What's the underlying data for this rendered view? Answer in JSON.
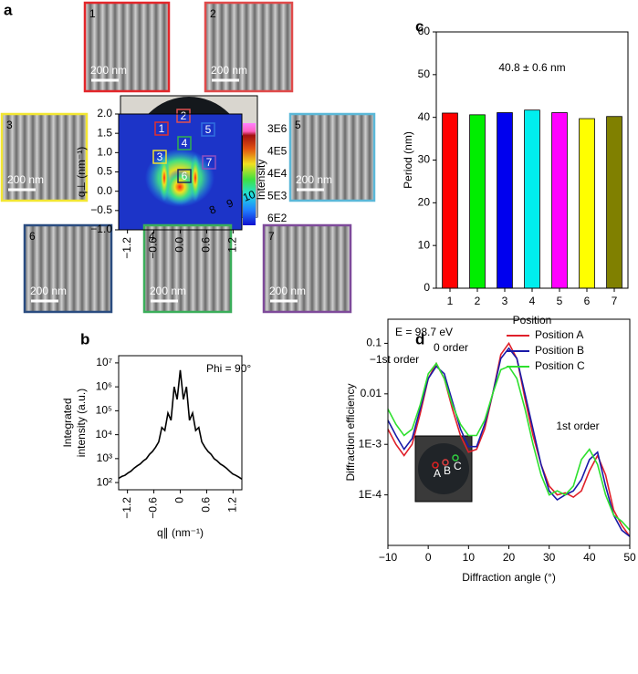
{
  "panel_labels": [
    "a",
    "b",
    "c",
    "d"
  ],
  "sem_images": [
    {
      "label": "1",
      "scale_bar": "200 nm",
      "color": "#e3262a"
    },
    {
      "label": "2",
      "scale_bar": "200 nm",
      "color": "#e04a4a"
    },
    {
      "label": "3",
      "scale_bar": "200 nm",
      "color": "#f2e632"
    },
    {
      "label": "5",
      "scale_bar": "200 nm",
      "color": "#5bb8d8"
    },
    {
      "label": "6",
      "scale_bar": "200 nm",
      "color": "#2a4c80"
    },
    {
      "label": "4",
      "scale_bar": "200 nm",
      "color": "#3aae5a"
    },
    {
      "label": "7",
      "scale_bar": "200 nm",
      "color": "#7e4a9a"
    }
  ],
  "wafer": {
    "markers": [
      {
        "label": "1",
        "color": "#e03030"
      },
      {
        "label": "2",
        "color": "#e05050"
      },
      {
        "label": "3",
        "color": "#f0e030"
      },
      {
        "label": "4",
        "color": "#30b050"
      },
      {
        "label": "5",
        "color": "#3070e0"
      },
      {
        "label": "6",
        "color": "#1a2a5a"
      },
      {
        "label": "7",
        "color": "#9050c0"
      }
    ],
    "ruler": [
      "8",
      "9",
      "10"
    ]
  },
  "chart_data": [
    {
      "type": "bar",
      "categories": [
        "1",
        "2",
        "3",
        "4",
        "5",
        "6",
        "7"
      ],
      "values": [
        41.0,
        40.6,
        41.1,
        41.7,
        41.1,
        39.7,
        40.2
      ],
      "colors": [
        "#ff0000",
        "#00ee00",
        "#0000ee",
        "#00eeee",
        "#ff00ff",
        "#ffff00",
        "#808000"
      ],
      "ylim": [
        0,
        60
      ],
      "yticks": [
        0,
        10,
        20,
        30,
        40,
        50,
        60
      ],
      "xlabel": "Position",
      "ylabel": "Period (nm)",
      "annotation": "40.8 ± 0.6 nm"
    },
    {
      "type": "heatmap",
      "xlim": [
        -1.4,
        1.4
      ],
      "ylim": [
        -1.0,
        2.0
      ],
      "xticks": [
        {
          "value": -1.2,
          "label": "−1.2"
        },
        {
          "value": -0.6,
          "label": "−0.6"
        },
        {
          "value": 0,
          "label": "0.0"
        },
        0.6,
        1.2
      ],
      "yticks": [
        {
          "value": -1,
          "label": "−1.0"
        },
        {
          "value": -0.5,
          "label": "−0.5"
        },
        {
          "value": 0,
          "label": "0.0"
        },
        0.5,
        {
          "value": 1,
          "label": "1.0"
        },
        1.5,
        {
          "value": 2,
          "label": "2.0"
        }
      ],
      "ylabel": "q⊥ (nm⁻¹)",
      "colorbar_label": "Intensity",
      "colorbar_labels": [
        "3E6",
        "4E5",
        "4E4",
        "5E3",
        "6E2"
      ]
    },
    {
      "type": "line",
      "log_y": true,
      "color": "#000000",
      "x": [
        -1.4,
        -1.33,
        -1.26,
        -1.19,
        -1.12,
        -1.05,
        -0.98,
        -0.91,
        -0.84,
        -0.77,
        -0.7,
        -0.63,
        -0.56,
        -0.49,
        -0.42,
        -0.35,
        -0.28,
        -0.21,
        -0.14,
        -0.07,
        0,
        0.07,
        0.14,
        0.21,
        0.28,
        0.35,
        0.42,
        0.49,
        0.56,
        0.63,
        0.7,
        0.77,
        0.84,
        0.91,
        0.98,
        1.05,
        1.12,
        1.19,
        1.26,
        1.33,
        1.4
      ],
      "values": [
        150,
        180,
        200,
        250,
        300,
        400,
        500,
        600,
        800,
        1000,
        1500,
        2000,
        3000,
        5000,
        20000,
        15000,
        80000,
        40000,
        1000000,
        300000,
        5000000,
        300000,
        1000000,
        40000,
        80000,
        15000,
        20000,
        5000,
        3000,
        2000,
        1500,
        1000,
        800,
        600,
        500,
        400,
        300,
        230,
        200,
        170,
        140
      ],
      "xlim": [
        -1.4,
        1.4
      ],
      "ylim": [
        50,
        20000000
      ],
      "xticks": [
        {
          "value": -1.2,
          "label": "−1.2"
        },
        {
          "value": -0.6,
          "label": "−0.6"
        },
        0,
        0.6,
        1.2
      ],
      "yticks": [
        {
          "value": 100,
          "label": "10²"
        },
        {
          "value": 1000,
          "label": "10³"
        },
        {
          "value": 10000,
          "label": "10⁴"
        },
        {
          "value": 100000,
          "label": "10⁵"
        },
        {
          "value": 1000000,
          "label": "10⁶"
        },
        {
          "value": 10000000,
          "label": "10⁷"
        }
      ],
      "xlabel": "q∥ (nm⁻¹)",
      "ylabel_lines": [
        "Integrated",
        "intensity (a.u.)"
      ],
      "annotations": [
        "Phi = 90°"
      ]
    },
    {
      "type": "line",
      "log_y": true,
      "x": [
        -10,
        -8,
        -6,
        -4,
        -2,
        0,
        2,
        4,
        6,
        8,
        10,
        12,
        14,
        16,
        18,
        20,
        22,
        24,
        26,
        28,
        30,
        32,
        34,
        36,
        38,
        40,
        42,
        44,
        46,
        48,
        50
      ],
      "series": [
        {
          "name": "Position A",
          "color": "#e0202a",
          "values": [
            0.002,
            0.001,
            0.0006,
            0.001,
            0.004,
            0.02,
            0.04,
            0.02,
            0.005,
            0.0015,
            0.0007,
            0.0008,
            0.002,
            0.01,
            0.06,
            0.1,
            0.05,
            0.008,
            0.0015,
            0.0004,
            0.00015,
            0.0001,
            0.00011,
            9e-05,
            0.00012,
            0.0003,
            0.0006,
            0.00025,
            5e-05,
            2.5e-05,
            1.5e-05
          ]
        },
        {
          "name": "Position B",
          "color": "#1a1aa8",
          "values": [
            0.003,
            0.0015,
            0.0008,
            0.0013,
            0.005,
            0.02,
            0.035,
            0.025,
            0.007,
            0.002,
            0.0009,
            0.0009,
            0.0025,
            0.01,
            0.05,
            0.08,
            0.05,
            0.01,
            0.002,
            0.0004,
            0.00012,
            8e-05,
            0.0001,
            0.00012,
            0.0002,
            0.0005,
            0.0007,
            0.00015,
            4e-05,
            2e-05,
            1.5e-05
          ]
        },
        {
          "name": "Position C",
          "color": "#2ee02e",
          "values": [
            0.005,
            0.0025,
            0.0015,
            0.002,
            0.006,
            0.025,
            0.04,
            0.02,
            0.006,
            0.0025,
            0.0015,
            0.0015,
            0.003,
            0.01,
            0.03,
            0.035,
            0.02,
            0.005,
            0.001,
            0.00025,
            0.0001,
            0.00012,
            0.0001,
            0.00015,
            0.0005,
            0.0008,
            0.0004,
            0.0001,
            4e-05,
            3e-05,
            2e-05
          ]
        }
      ],
      "xlim": [
        -10,
        50
      ],
      "ylim": [
        1e-05,
        0.3
      ],
      "xticks": [
        {
          "value": -10,
          "label": "−10"
        },
        0,
        10,
        20,
        30,
        40,
        50
      ],
      "yticks": [
        {
          "value": 0.0001,
          "label": "1E-4"
        },
        {
          "value": 0.001,
          "label": "1E-3"
        },
        0.01,
        0.1
      ],
      "xlabel": "Diffraction angle (°)",
      "ylabel": "Diffraction efficiency",
      "annotations": [
        "E = 98.7 eV",
        "−1st order",
        "0 order",
        "1st order"
      ],
      "inset_labels": [
        {
          "label": "A",
          "color": "#e02020"
        },
        {
          "label": "B",
          "color": "#e04040"
        },
        {
          "label": "C",
          "color": "#30d040"
        }
      ]
    }
  ]
}
